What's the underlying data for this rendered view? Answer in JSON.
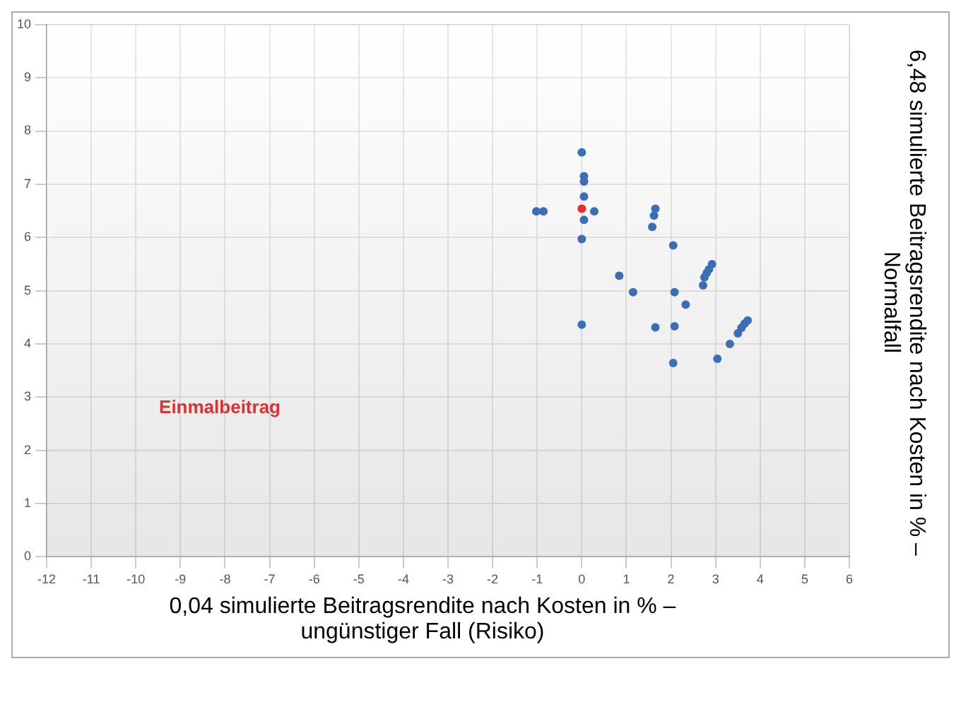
{
  "chart_data": {
    "type": "scatter",
    "xlabel": "0,04 simulierte Beitragsrendite nach Kosten in % – ungünstiger Fall (Risiko)",
    "ylabel": "6,48 simulierte Beitragsrendite nach Kosten in % – Normalfall",
    "annotations": [
      "Einmalbeitrag"
    ],
    "series": [
      {
        "color": "#3a6fb5",
        "x": [
          0.0,
          0.05,
          0.05,
          0.05,
          0.28,
          0.05,
          0.0,
          -1.02,
          -0.86,
          1.65,
          1.62,
          1.58,
          2.05,
          0.84,
          1.15,
          2.08,
          2.33,
          2.92,
          2.85,
          2.8,
          2.75,
          2.72,
          0.0,
          1.65,
          2.08,
          2.05,
          3.04,
          3.32,
          3.72,
          3.65,
          3.58,
          3.5
        ],
        "values": [
          7.6,
          7.15,
          7.05,
          6.77,
          6.49,
          6.33,
          5.97,
          6.49,
          6.49,
          6.54,
          6.41,
          6.2,
          5.85,
          5.28,
          4.97,
          4.97,
          4.74,
          5.5,
          5.4,
          5.33,
          5.25,
          5.1,
          4.36,
          4.31,
          4.33,
          3.64,
          3.72,
          4.0,
          4.44,
          4.38,
          4.3,
          4.2
        ]
      },
      {
        "color": "#e03030",
        "x": [
          0.0
        ],
        "values": [
          6.54
        ]
      }
    ],
    "xlim": [
      -12,
      6
    ],
    "xticks": [
      -12,
      -11,
      -10,
      -9,
      -8,
      -7,
      -6,
      -5,
      -4,
      -3,
      -2,
      -1,
      0,
      1,
      2,
      3,
      4,
      5,
      6
    ],
    "ylim": [
      0,
      10
    ],
    "yticks": [
      0,
      1,
      2,
      3,
      4,
      5,
      6,
      7,
      8,
      9,
      10
    ],
    "grid": true,
    "marker": "circle"
  }
}
